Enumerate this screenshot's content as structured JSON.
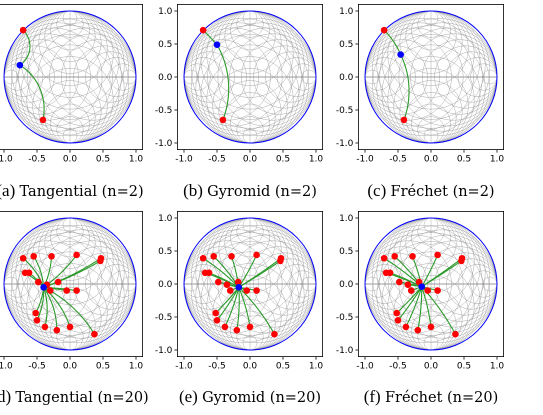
{
  "figure": {
    "panels": [
      {
        "tag": "(a)",
        "caption": "Tangential (n=2)"
      },
      {
        "tag": "(b)",
        "caption": "Gyromid (n=2)"
      },
      {
        "tag": "(c)",
        "caption": "Fréchet (n=2)"
      },
      {
        "tag": "(d)",
        "caption": "Tangential (n=20)"
      },
      {
        "tag": "(e)",
        "caption": "Gyromid (n=20)"
      },
      {
        "tag": "(f)",
        "caption": "Fréchet (n=20)"
      }
    ]
  },
  "colors": {
    "points": "#ff0000",
    "centroid": "#0000ff",
    "geodesic": "#2a9a2a",
    "disk_boundary": "#0000ff",
    "grid": "#888888"
  },
  "chart_data": [
    {
      "type": "scatter",
      "title": "Tangential (n=2)",
      "xlim": [
        -1.1,
        1.1
      ],
      "ylim": [
        -1.1,
        1.1
      ],
      "xticks": [
        "-1.0",
        "-0.5",
        "0.0",
        "0.5",
        "1.0"
      ],
      "yticks": [
        "-1.0",
        "-0.5",
        "0.0",
        "0.5",
        "1.0"
      ],
      "grid": true,
      "legend": "none",
      "points": [
        [
          -0.71,
          0.71
        ],
        [
          -0.41,
          -0.65
        ]
      ],
      "centroid": [
        -0.76,
        0.18
      ]
    },
    {
      "type": "scatter",
      "title": "Gyromid (n=2)",
      "xlim": [
        -1.1,
        1.1
      ],
      "ylim": [
        -1.1,
        1.1
      ],
      "xticks": [
        "-1.0",
        "-0.5",
        "0.0",
        "0.5",
        "1.0"
      ],
      "yticks": [
        "-1.0",
        "-0.5",
        "0.0",
        "0.5",
        "1.0"
      ],
      "grid": true,
      "legend": "none",
      "points": [
        [
          -0.71,
          0.71
        ],
        [
          -0.41,
          -0.65
        ]
      ],
      "centroid": [
        -0.5,
        0.49
      ]
    },
    {
      "type": "scatter",
      "title": "Fréchet (n=2)",
      "xlim": [
        -1.1,
        1.1
      ],
      "ylim": [
        -1.1,
        1.1
      ],
      "xticks": [
        "-1.0",
        "-0.5",
        "0.0",
        "0.5",
        "1.0"
      ],
      "yticks": [
        "-1.0",
        "-0.5",
        "0.0",
        "0.5",
        "1.0"
      ],
      "grid": true,
      "legend": "none",
      "points": [
        [
          -0.71,
          0.71
        ],
        [
          -0.41,
          -0.65
        ]
      ],
      "centroid": [
        -0.46,
        0.34
      ]
    },
    {
      "type": "scatter",
      "title": "Tangential (n=20)",
      "xlim": [
        -1.1,
        1.1
      ],
      "ylim": [
        -1.1,
        1.1
      ],
      "xticks": [
        "-1.0",
        "-0.5",
        "0.0",
        "0.5",
        "1.0"
      ],
      "yticks": [
        "-1.0",
        "-0.5",
        "0.0",
        "0.5",
        "1.0"
      ],
      "grid": true,
      "legend": "none",
      "points": [
        [
          -0.71,
          0.39
        ],
        [
          -0.55,
          0.42
        ],
        [
          -0.62,
          0.17
        ],
        [
          -0.68,
          0.17
        ],
        [
          -0.28,
          0.42
        ],
        [
          0.1,
          0.44
        ],
        [
          0.47,
          0.39
        ],
        [
          0.46,
          0.35
        ],
        [
          -0.48,
          0.03
        ],
        [
          -0.35,
          -0.01
        ],
        [
          -0.3,
          -0.1
        ],
        [
          -0.05,
          -0.1
        ],
        [
          -0.18,
          0.03
        ],
        [
          0.1,
          -0.1
        ],
        [
          -0.52,
          -0.44
        ],
        [
          -0.5,
          -0.55
        ],
        [
          -0.38,
          -0.65
        ],
        [
          -0.2,
          -0.7
        ],
        [
          0.0,
          -0.65
        ],
        [
          0.37,
          -0.76
        ]
      ],
      "centroid": [
        -0.4,
        -0.05
      ]
    },
    {
      "type": "scatter",
      "title": "Gyromid (n=20)",
      "xlim": [
        -1.1,
        1.1
      ],
      "ylim": [
        -1.1,
        1.1
      ],
      "xticks": [
        "-1.0",
        "-0.5",
        "0.0",
        "0.5",
        "1.0"
      ],
      "yticks": [
        "-1.0",
        "-0.5",
        "0.0",
        "0.5",
        "1.0"
      ],
      "grid": true,
      "legend": "none",
      "points": [
        [
          -0.71,
          0.39
        ],
        [
          -0.55,
          0.42
        ],
        [
          -0.62,
          0.17
        ],
        [
          -0.68,
          0.17
        ],
        [
          -0.28,
          0.42
        ],
        [
          0.1,
          0.44
        ],
        [
          0.47,
          0.39
        ],
        [
          0.46,
          0.35
        ],
        [
          -0.48,
          0.03
        ],
        [
          -0.35,
          -0.01
        ],
        [
          -0.3,
          -0.1
        ],
        [
          -0.05,
          -0.1
        ],
        [
          -0.18,
          0.03
        ],
        [
          0.1,
          -0.1
        ],
        [
          -0.52,
          -0.44
        ],
        [
          -0.5,
          -0.55
        ],
        [
          -0.38,
          -0.65
        ],
        [
          -0.2,
          -0.7
        ],
        [
          0.0,
          -0.65
        ],
        [
          0.37,
          -0.76
        ]
      ],
      "centroid": [
        -0.17,
        -0.05
      ]
    },
    {
      "type": "scatter",
      "title": "Fréchet (n=20)",
      "xlim": [
        -1.1,
        1.1
      ],
      "ylim": [
        -1.1,
        1.1
      ],
      "xticks": [
        "-1.0",
        "-0.5",
        "0.0",
        "0.5",
        "1.0"
      ],
      "yticks": [
        "-1.0",
        "-0.5",
        "0.0",
        "0.5",
        "1.0"
      ],
      "grid": true,
      "legend": "none",
      "points": [
        [
          -0.71,
          0.39
        ],
        [
          -0.55,
          0.42
        ],
        [
          -0.62,
          0.17
        ],
        [
          -0.68,
          0.17
        ],
        [
          -0.28,
          0.42
        ],
        [
          0.1,
          0.44
        ],
        [
          0.47,
          0.39
        ],
        [
          0.46,
          0.35
        ],
        [
          -0.48,
          0.03
        ],
        [
          -0.35,
          -0.01
        ],
        [
          -0.3,
          -0.1
        ],
        [
          -0.05,
          -0.1
        ],
        [
          -0.18,
          0.03
        ],
        [
          0.1,
          -0.1
        ],
        [
          -0.52,
          -0.44
        ],
        [
          -0.5,
          -0.55
        ],
        [
          -0.38,
          -0.65
        ],
        [
          -0.2,
          -0.7
        ],
        [
          0.0,
          -0.65
        ],
        [
          0.37,
          -0.76
        ]
      ],
      "centroid": [
        -0.14,
        -0.04
      ]
    }
  ]
}
